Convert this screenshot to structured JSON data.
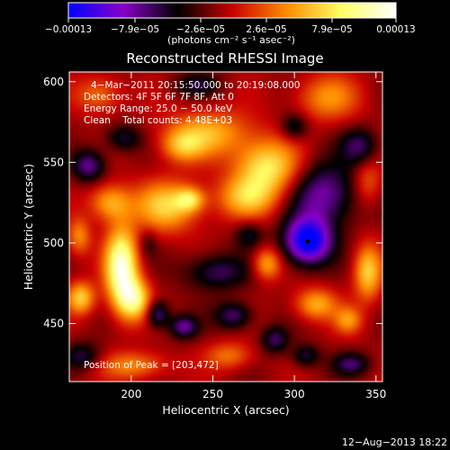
{
  "chart_data": {
    "type": "heatmap",
    "title": "Reconstructed RHESSI Image",
    "xlabel": "Heliocentric X (arcsec)",
    "ylabel": "Heliocentric Y (arcsec)",
    "xlim": [
      162,
      354
    ],
    "ylim": [
      414,
      606
    ],
    "xticks": [
      200,
      250,
      300,
      350
    ],
    "yticks": [
      450,
      500,
      550,
      600
    ],
    "colorbar": {
      "min": -0.00013,
      "max": 0.00013,
      "tick_labels": [
        "−0.00013",
        "−7.9e−05",
        "−2.6e−05",
        "2.6e−05",
        "7.9e−05",
        "0.00013"
      ],
      "label": "(photons cm⁻² s⁻¹ asec⁻²)",
      "colormap_stops": [
        "#0000ff",
        "#8a00c8",
        "#000000",
        "#c80000",
        "#ff8c00",
        "#ffff66",
        "#ffffff"
      ]
    },
    "annotations": [
      "4−Mar−2011 20:15:50.000 to 20:19:08.000",
      "Detectors: 4F 5F 6F 7F 8F, Att 0",
      "Energy Range: 25.0 − 50.0 keV",
      "Clean    Total counts: 4.48E+03"
    ],
    "peak_label": "Position of Peak = [203,472]",
    "marked_point": {
      "x": 308,
      "y": 501
    },
    "blobs": [
      {
        "x": 194,
        "y": 485,
        "sx": 7,
        "sy": 17,
        "amp": 1.0
      },
      {
        "x": 202,
        "y": 465,
        "sx": 7,
        "sy": 9,
        "amp": 0.7
      },
      {
        "x": 222,
        "y": 523,
        "sx": 14,
        "sy": 11,
        "amp": 0.6
      },
      {
        "x": 236,
        "y": 527,
        "sx": 6,
        "sy": 5,
        "amp": 0.5
      },
      {
        "x": 271,
        "y": 528,
        "sx": 13,
        "sy": 9,
        "amp": 0.5
      },
      {
        "x": 283,
        "y": 547,
        "sx": 14,
        "sy": 12,
        "amp": 0.7
      },
      {
        "x": 247,
        "y": 568,
        "sx": 18,
        "sy": 10,
        "amp": 0.5
      },
      {
        "x": 231,
        "y": 560,
        "sx": 9,
        "sy": 7,
        "amp": 0.4
      },
      {
        "x": 187,
        "y": 525,
        "sx": 9,
        "sy": 8,
        "amp": 0.5
      },
      {
        "x": 169,
        "y": 466,
        "sx": 6,
        "sy": 7,
        "amp": 0.6
      },
      {
        "x": 168,
        "y": 504,
        "sx": 5,
        "sy": 8,
        "amp": 0.4
      },
      {
        "x": 202,
        "y": 424,
        "sx": 14,
        "sy": 6,
        "amp": 0.4
      },
      {
        "x": 283,
        "y": 487,
        "sx": 6,
        "sy": 7,
        "amp": 0.5
      },
      {
        "x": 313,
        "y": 462,
        "sx": 9,
        "sy": 7,
        "amp": 0.5
      },
      {
        "x": 333,
        "y": 452,
        "sx": 6,
        "sy": 6,
        "amp": 0.4
      },
      {
        "x": 345,
        "y": 482,
        "sx": 6,
        "sy": 12,
        "amp": 0.6
      },
      {
        "x": 320,
        "y": 590,
        "sx": 14,
        "sy": 10,
        "amp": 0.4
      },
      {
        "x": 180,
        "y": 592,
        "sx": 10,
        "sy": 8,
        "amp": 0.35
      },
      {
        "x": 260,
        "y": 430,
        "sx": 10,
        "sy": 6,
        "amp": 0.35
      },
      {
        "x": 345,
        "y": 538,
        "sx": 6,
        "sy": 10,
        "amp": 0.3
      },
      {
        "x": 308,
        "y": 501,
        "sx": 10,
        "sy": 10,
        "amp": -1.0
      },
      {
        "x": 318,
        "y": 530,
        "sx": 14,
        "sy": 14,
        "amp": -0.55
      },
      {
        "x": 174,
        "y": 548,
        "sx": 7,
        "sy": 7,
        "amp": -0.5
      },
      {
        "x": 216,
        "y": 456,
        "sx": 5,
        "sy": 6,
        "amp": -0.5
      },
      {
        "x": 232,
        "y": 448,
        "sx": 6,
        "sy": 5,
        "amp": -0.5
      },
      {
        "x": 252,
        "y": 482,
        "sx": 14,
        "sy": 8,
        "amp": -0.4
      },
      {
        "x": 263,
        "y": 455,
        "sx": 8,
        "sy": 6,
        "amp": -0.45
      },
      {
        "x": 288,
        "y": 440,
        "sx": 6,
        "sy": 6,
        "amp": -0.4
      },
      {
        "x": 307,
        "y": 430,
        "sx": 6,
        "sy": 5,
        "amp": -0.35
      },
      {
        "x": 335,
        "y": 425,
        "sx": 8,
        "sy": 5,
        "amp": -0.4
      },
      {
        "x": 340,
        "y": 560,
        "sx": 8,
        "sy": 8,
        "amp": -0.4
      },
      {
        "x": 170,
        "y": 430,
        "sx": 8,
        "sy": 6,
        "amp": -0.35
      },
      {
        "x": 210,
        "y": 500,
        "sx": 4,
        "sy": 6,
        "amp": -0.2
      },
      {
        "x": 195,
        "y": 565,
        "sx": 8,
        "sy": 6,
        "amp": -0.35
      },
      {
        "x": 300,
        "y": 572,
        "sx": 6,
        "sy": 6,
        "amp": -0.35
      },
      {
        "x": 240,
        "y": 598,
        "sx": 10,
        "sy": 5,
        "amp": -0.3
      },
      {
        "x": 272,
        "y": 505,
        "sx": 6,
        "sy": 6,
        "amp": -0.3
      }
    ]
  },
  "footer": {
    "timestamp": "12−Aug−2013 18:22"
  }
}
